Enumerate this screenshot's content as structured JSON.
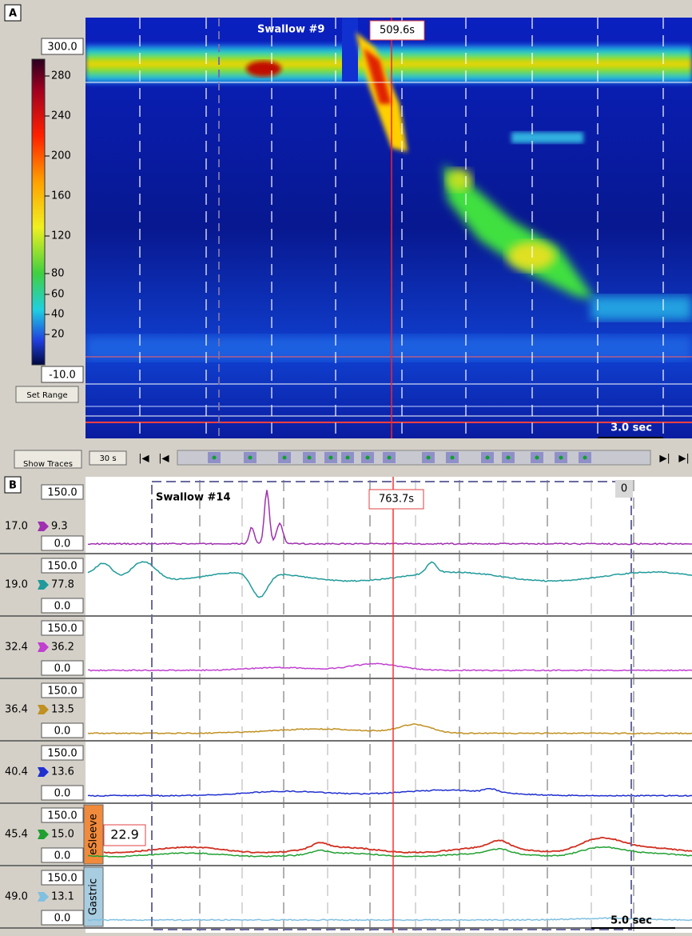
{
  "panel_a": {
    "label": "A",
    "colorbar": {
      "max": "300.0",
      "min": "-10.0",
      "ticks": [
        "280",
        "240",
        "200",
        "160",
        "120",
        "80",
        "60",
        "40",
        "20"
      ]
    },
    "set_range": "Set Range",
    "show_traces": "Show Traces",
    "swallow": "Swallow #9",
    "cursor_time": "509.6s",
    "scale": "3.0 sec",
    "window": "30 s"
  },
  "panel_b": {
    "label": "B",
    "swallow": "Swallow #14",
    "cursor_time": "763.7s",
    "marker": "0",
    "scale": "5.0 sec",
    "readout": "22.9",
    "channels": [
      {
        "position": "17.0",
        "value": "9.3",
        "max": "150.0",
        "min": "0.0",
        "color": "#a030b0"
      },
      {
        "position": "19.0",
        "value": "77.8",
        "max": "150.0",
        "min": "0.0",
        "color": "#209a9a"
      },
      {
        "position": "32.4",
        "value": "36.2",
        "max": "150.0",
        "min": "0.0",
        "color": "#c040d0"
      },
      {
        "position": "36.4",
        "value": "13.5",
        "max": "150.0",
        "min": "0.0",
        "color": "#c09020"
      },
      {
        "position": "40.4",
        "value": "13.6",
        "max": "150.0",
        "min": "0.0",
        "color": "#2030d0"
      },
      {
        "position": "45.4",
        "value": "15.0",
        "max": "150.0",
        "min": "0.0",
        "color": "#20a030",
        "tab": "eSleeve",
        "tab_color": "#f08a3c"
      },
      {
        "position": "49.0",
        "value": "13.1",
        "max": "150.0",
        "min": "0.0",
        "color": "#80c0e0",
        "tab": "Gastric",
        "tab_color": "#a8cce0"
      }
    ]
  }
}
